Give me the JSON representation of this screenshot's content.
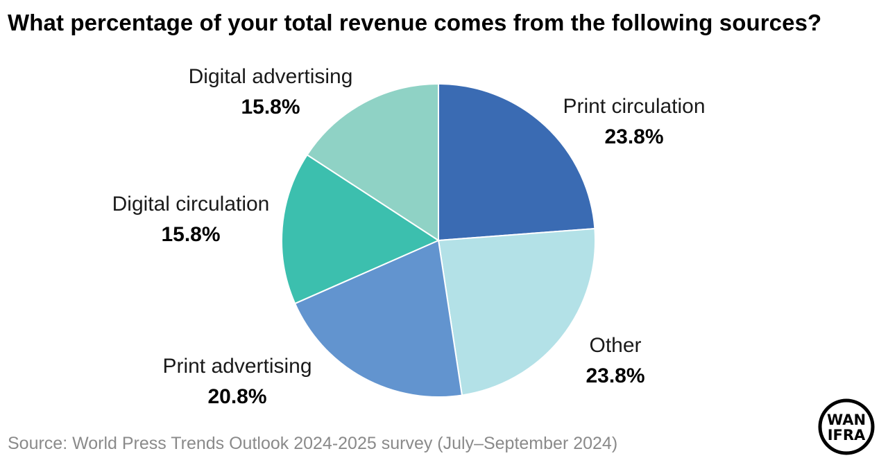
{
  "title": "What percentage of your total revenue comes from the following sources?",
  "source": "Source: World Press Trends Outlook 2024-2025 survey (July–September 2024)",
  "logo": {
    "line1": "WAN",
    "line2": "IFRA"
  },
  "chart_data": {
    "type": "pie",
    "title": "What percentage of your total revenue comes from the following sources?",
    "start_angle_deg": 0,
    "direction": "clockwise",
    "slices": [
      {
        "label": "Print circulation",
        "value": 23.8,
        "value_label": "23.8%",
        "color": "#3a6bb3"
      },
      {
        "label": "Other",
        "value": 23.8,
        "value_label": "23.8%",
        "color": "#b3e1e7"
      },
      {
        "label": "Print advertising",
        "value": 20.8,
        "value_label": "20.8%",
        "color": "#6294cf"
      },
      {
        "label": "Digital circulation",
        "value": 15.8,
        "value_label": "15.8%",
        "color": "#3cbfae"
      },
      {
        "label": "Digital advertising",
        "value": 15.8,
        "value_label": "15.8%",
        "color": "#8fd2c5"
      }
    ]
  }
}
